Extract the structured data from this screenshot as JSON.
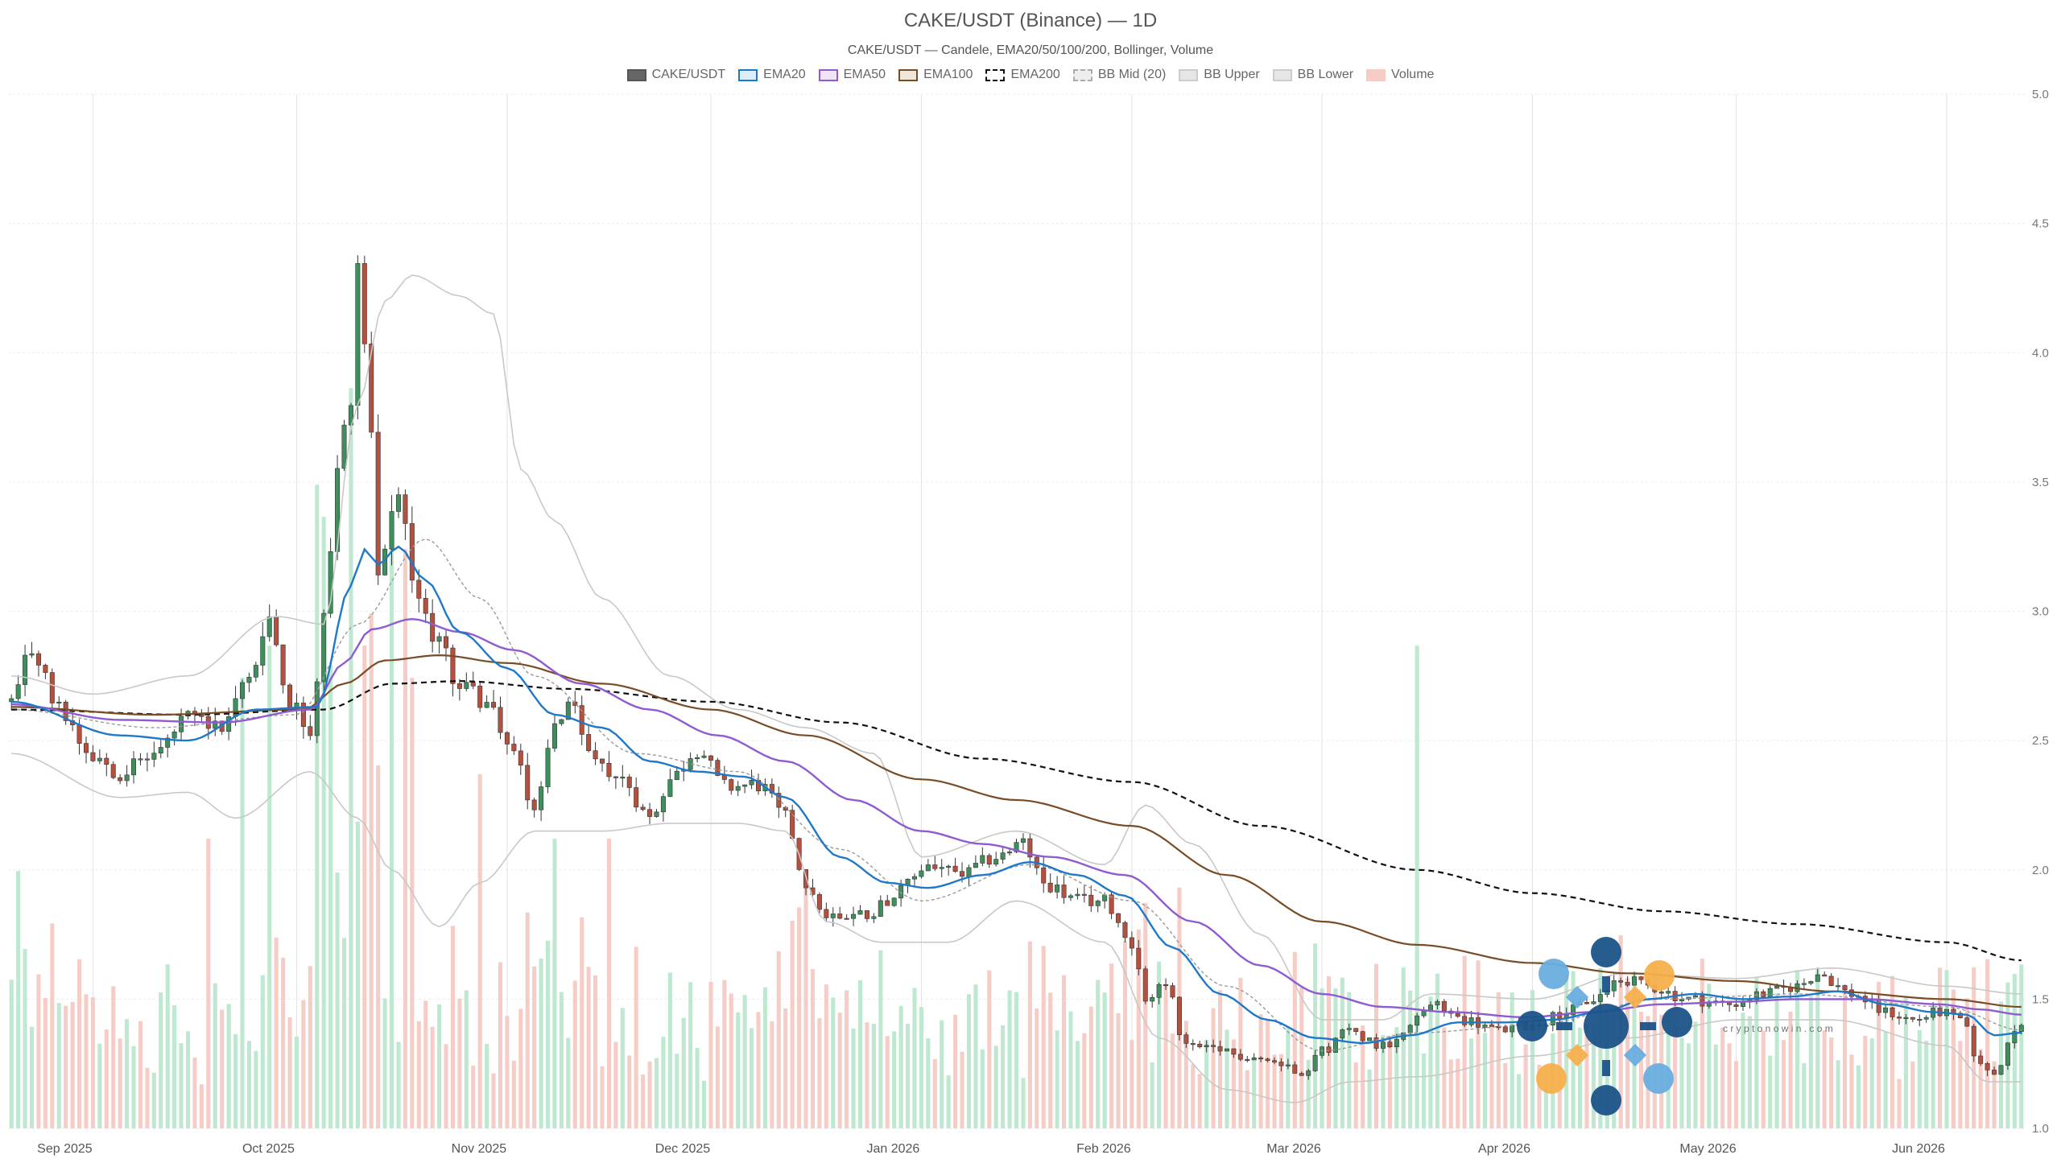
{
  "chart_data": {
    "type": "candlestick",
    "title": "CAKE/USDT (Binance) — 1D",
    "subtitle": "CAKE/USDT — Candele, EMA20/50/100/200, Bollinger, Volume",
    "legend": [
      {
        "label": "CAKE/USDT",
        "fill": "#666666",
        "stroke": "#555555",
        "dash": false
      },
      {
        "label": "EMA20",
        "fill": "#dbeefb",
        "stroke": "#1f78c8",
        "dash": false
      },
      {
        "label": "EMA50",
        "fill": "#eee5f7",
        "stroke": "#8e5bd1",
        "dash": false
      },
      {
        "label": "EMA100",
        "fill": "#efe6dc",
        "stroke": "#7a4c26",
        "dash": false
      },
      {
        "label": "EMA200",
        "fill": "#ffffff",
        "stroke": "#111111",
        "dash": true
      },
      {
        "label": "BB Mid (20)",
        "fill": "#eeeeee",
        "stroke": "#aaaaaa",
        "dash": true
      },
      {
        "label": "BB Upper",
        "fill": "#e6e6e6",
        "stroke": "#cccccc",
        "dash": false
      },
      {
        "label": "BB Lower",
        "fill": "#e6e6e6",
        "stroke": "#cccccc",
        "dash": false
      },
      {
        "label": "Volume",
        "fill": "#f5cdc6",
        "stroke": "#f5cdc6",
        "dash": false
      }
    ],
    "x_axis": {
      "start": "2025-08-20",
      "end": "2026-06-12",
      "ticks": [
        {
          "date": "2025-09-01",
          "label": "Sep 2025"
        },
        {
          "date": "2025-10-01",
          "label": "Oct 2025"
        },
        {
          "date": "2025-11-01",
          "label": "Nov 2025"
        },
        {
          "date": "2025-12-01",
          "label": "Dec 2025"
        },
        {
          "date": "2026-01-01",
          "label": "Jan 2026"
        },
        {
          "date": "2026-02-01",
          "label": "Feb 2026"
        },
        {
          "date": "2026-03-01",
          "label": "Mar 2026"
        },
        {
          "date": "2026-04-01",
          "label": "Apr 2026"
        },
        {
          "date": "2026-05-01",
          "label": "May 2026"
        },
        {
          "date": "2026-06-01",
          "label": "Jun 2026"
        }
      ]
    },
    "y_axis": {
      "min": 1.0,
      "max": 5.0,
      "ticks": [
        "1.0",
        "1.5",
        "2.0",
        "2.5",
        "3.0",
        "3.5",
        "4.0",
        "4.5",
        "5.0"
      ],
      "side": "right",
      "grid": true
    },
    "colors": {
      "up": "#3e8f5c",
      "down": "#b5503f",
      "volume_up": "#bfe8d0",
      "volume_down": "#f5cdc6"
    },
    "price_anchors": [
      [
        "2025-08-20",
        2.65
      ],
      [
        "2025-08-23",
        2.85
      ],
      [
        "2025-08-27",
        2.62
      ],
      [
        "2025-09-01",
        2.45
      ],
      [
        "2025-09-05",
        2.38
      ],
      [
        "2025-09-10",
        2.45
      ],
      [
        "2025-09-15",
        2.58
      ],
      [
        "2025-09-20",
        2.55
      ],
      [
        "2025-09-24",
        2.75
      ],
      [
        "2025-09-27",
        2.95
      ],
      [
        "2025-09-30",
        2.65
      ],
      [
        "2025-10-03",
        2.55
      ],
      [
        "2025-10-05",
        2.95
      ],
      [
        "2025-10-07",
        3.55
      ],
      [
        "2025-10-09",
        3.85
      ],
      [
        "2025-10-10",
        4.35
      ],
      [
        "2025-10-12",
        3.7
      ],
      [
        "2025-10-13",
        3.1
      ],
      [
        "2025-10-16",
        3.5
      ],
      [
        "2025-10-18",
        3.1
      ],
      [
        "2025-10-21",
        2.92
      ],
      [
        "2025-10-25",
        2.72
      ],
      [
        "2025-10-29",
        2.65
      ],
      [
        "2025-11-02",
        2.45
      ],
      [
        "2025-11-05",
        2.25
      ],
      [
        "2025-11-08",
        2.55
      ],
      [
        "2025-11-10",
        2.65
      ],
      [
        "2025-11-13",
        2.45
      ],
      [
        "2025-11-18",
        2.35
      ],
      [
        "2025-11-22",
        2.2
      ],
      [
        "2025-11-25",
        2.35
      ],
      [
        "2025-11-29",
        2.47
      ],
      [
        "2025-12-03",
        2.32
      ],
      [
        "2025-12-08",
        2.33
      ],
      [
        "2025-12-12",
        2.2
      ],
      [
        "2025-12-15",
        1.95
      ],
      [
        "2025-12-18",
        1.82
      ],
      [
        "2025-12-24",
        1.83
      ],
      [
        "2025-12-28",
        1.9
      ],
      [
        "2026-01-02",
        2.02
      ],
      [
        "2026-01-07",
        1.98
      ],
      [
        "2026-01-12",
        2.05
      ],
      [
        "2026-01-16",
        2.1
      ],
      [
        "2026-01-19",
        1.95
      ],
      [
        "2026-01-24",
        1.88
      ],
      [
        "2026-01-28",
        1.88
      ],
      [
        "2026-02-01",
        1.72
      ],
      [
        "2026-02-03",
        1.5
      ],
      [
        "2026-02-06",
        1.55
      ],
      [
        "2026-02-09",
        1.32
      ],
      [
        "2026-02-13",
        1.3
      ],
      [
        "2026-02-18",
        1.28
      ],
      [
        "2026-02-23",
        1.25
      ],
      [
        "2026-02-26",
        1.22
      ],
      [
        "2026-03-01",
        1.3
      ],
      [
        "2026-03-05",
        1.38
      ],
      [
        "2026-03-10",
        1.32
      ],
      [
        "2026-03-14",
        1.4
      ],
      [
        "2026-03-17",
        1.48
      ],
      [
        "2026-03-22",
        1.42
      ],
      [
        "2026-03-27",
        1.38
      ],
      [
        "2026-04-01",
        1.4
      ],
      [
        "2026-04-06",
        1.45
      ],
      [
        "2026-04-10",
        1.5
      ],
      [
        "2026-04-14",
        1.58
      ],
      [
        "2026-04-18",
        1.55
      ],
      [
        "2026-04-24",
        1.5
      ],
      [
        "2026-04-30",
        1.48
      ],
      [
        "2026-05-05",
        1.52
      ],
      [
        "2026-05-10",
        1.55
      ],
      [
        "2026-05-13",
        1.6
      ],
      [
        "2026-05-18",
        1.52
      ],
      [
        "2026-05-23",
        1.45
      ],
      [
        "2026-05-27",
        1.42
      ],
      [
        "2026-05-31",
        1.45
      ],
      [
        "2026-06-03",
        1.42
      ],
      [
        "2026-06-06",
        1.25
      ],
      [
        "2026-06-08",
        1.2
      ],
      [
        "2026-06-10",
        1.32
      ],
      [
        "2026-06-12",
        1.42
      ]
    ],
    "ema20": [
      [
        "2025-08-20",
        2.65
      ],
      [
        "2025-09-05",
        2.52
      ],
      [
        "2025-09-15",
        2.5
      ],
      [
        "2025-09-25",
        2.62
      ],
      [
        "2025-10-04",
        2.63
      ],
      [
        "2025-10-09",
        3.1
      ],
      [
        "2025-10-11",
        3.24
      ],
      [
        "2025-10-13",
        3.18
      ],
      [
        "2025-10-16",
        3.25
      ],
      [
        "2025-10-20",
        3.12
      ],
      [
        "2025-10-25",
        2.92
      ],
      [
        "2025-11-01",
        2.78
      ],
      [
        "2025-11-08",
        2.6
      ],
      [
        "2025-11-15",
        2.55
      ],
      [
        "2025-11-22",
        2.42
      ],
      [
        "2025-11-29",
        2.38
      ],
      [
        "2025-12-06",
        2.36
      ],
      [
        "2025-12-12",
        2.28
      ],
      [
        "2025-12-20",
        2.05
      ],
      [
        "2025-12-27",
        1.95
      ],
      [
        "2026-01-02",
        1.93
      ],
      [
        "2026-01-10",
        1.98
      ],
      [
        "2026-01-17",
        2.03
      ],
      [
        "2026-01-24",
        1.98
      ],
      [
        "2026-01-31",
        1.9
      ],
      [
        "2026-02-07",
        1.7
      ],
      [
        "2026-02-14",
        1.52
      ],
      [
        "2026-02-21",
        1.42
      ],
      [
        "2026-02-28",
        1.35
      ],
      [
        "2026-03-07",
        1.33
      ],
      [
        "2026-03-14",
        1.36
      ],
      [
        "2026-03-21",
        1.41
      ],
      [
        "2026-03-28",
        1.41
      ],
      [
        "2026-04-04",
        1.42
      ],
      [
        "2026-04-11",
        1.45
      ],
      [
        "2026-04-18",
        1.5
      ],
      [
        "2026-04-25",
        1.52
      ],
      [
        "2026-05-02",
        1.5
      ],
      [
        "2026-05-09",
        1.51
      ],
      [
        "2026-05-16",
        1.53
      ],
      [
        "2026-05-23",
        1.48
      ],
      [
        "2026-05-30",
        1.45
      ],
      [
        "2026-06-04",
        1.44
      ],
      [
        "2026-06-08",
        1.36
      ],
      [
        "2026-06-12",
        1.37
      ]
    ],
    "ema50": [
      [
        "2025-08-20",
        2.64
      ],
      [
        "2025-09-05",
        2.58
      ],
      [
        "2025-09-20",
        2.57
      ],
      [
        "2025-10-03",
        2.62
      ],
      [
        "2025-10-08",
        2.8
      ],
      [
        "2025-10-12",
        2.93
      ],
      [
        "2025-10-18",
        2.97
      ],
      [
        "2025-10-25",
        2.92
      ],
      [
        "2025-11-02",
        2.85
      ],
      [
        "2025-11-12",
        2.72
      ],
      [
        "2025-11-22",
        2.62
      ],
      [
        "2025-12-02",
        2.52
      ],
      [
        "2025-12-12",
        2.42
      ],
      [
        "2025-12-22",
        2.27
      ],
      [
        "2026-01-01",
        2.15
      ],
      [
        "2026-01-10",
        2.1
      ],
      [
        "2026-01-20",
        2.05
      ],
      [
        "2026-01-31",
        1.98
      ],
      [
        "2026-02-10",
        1.8
      ],
      [
        "2026-02-20",
        1.63
      ],
      [
        "2026-03-01",
        1.52
      ],
      [
        "2026-03-10",
        1.47
      ],
      [
        "2026-03-20",
        1.45
      ],
      [
        "2026-03-31",
        1.43
      ],
      [
        "2026-04-10",
        1.45
      ],
      [
        "2026-04-20",
        1.48
      ],
      [
        "2026-05-01",
        1.49
      ],
      [
        "2026-05-10",
        1.5
      ],
      [
        "2026-05-20",
        1.5
      ],
      [
        "2026-05-31",
        1.48
      ],
      [
        "2026-06-06",
        1.46
      ],
      [
        "2026-06-12",
        1.44
      ]
    ],
    "ema100": [
      [
        "2025-08-20",
        2.63
      ],
      [
        "2025-09-10",
        2.6
      ],
      [
        "2025-10-02",
        2.62
      ],
      [
        "2025-10-08",
        2.72
      ],
      [
        "2025-10-14",
        2.81
      ],
      [
        "2025-10-22",
        2.83
      ],
      [
        "2025-11-01",
        2.8
      ],
      [
        "2025-11-15",
        2.72
      ],
      [
        "2025-12-01",
        2.62
      ],
      [
        "2025-12-15",
        2.52
      ],
      [
        "2026-01-01",
        2.35
      ],
      [
        "2026-01-15",
        2.27
      ],
      [
        "2026-02-01",
        2.17
      ],
      [
        "2026-02-15",
        1.98
      ],
      [
        "2026-03-01",
        1.8
      ],
      [
        "2026-03-15",
        1.71
      ],
      [
        "2026-04-01",
        1.64
      ],
      [
        "2026-04-15",
        1.6
      ],
      [
        "2026-05-01",
        1.57
      ],
      [
        "2026-05-15",
        1.53
      ],
      [
        "2026-06-01",
        1.5
      ],
      [
        "2026-06-12",
        1.47
      ]
    ],
    "ema200": [
      [
        "2025-08-20",
        2.62
      ],
      [
        "2025-09-15",
        2.6
      ],
      [
        "2025-10-05",
        2.62
      ],
      [
        "2025-10-15",
        2.72
      ],
      [
        "2025-10-25",
        2.73
      ],
      [
        "2025-11-10",
        2.7
      ],
      [
        "2025-12-01",
        2.65
      ],
      [
        "2025-12-20",
        2.57
      ],
      [
        "2026-01-10",
        2.43
      ],
      [
        "2026-02-01",
        2.34
      ],
      [
        "2026-02-20",
        2.17
      ],
      [
        "2026-03-15",
        2.0
      ],
      [
        "2026-04-01",
        1.91
      ],
      [
        "2026-04-20",
        1.84
      ],
      [
        "2026-05-10",
        1.79
      ],
      [
        "2026-06-01",
        1.72
      ],
      [
        "2026-06-12",
        1.65
      ]
    ],
    "bb_upper": [
      [
        "2025-08-20",
        2.75
      ],
      [
        "2025-09-01",
        2.68
      ],
      [
        "2025-09-15",
        2.75
      ],
      [
        "2025-09-28",
        2.98
      ],
      [
        "2025-10-05",
        2.95
      ],
      [
        "2025-10-10",
        3.8
      ],
      [
        "2025-10-14",
        4.2
      ],
      [
        "2025-10-18",
        4.3
      ],
      [
        "2025-10-25",
        4.22
      ],
      [
        "2025-10-30",
        4.15
      ],
      [
        "2025-11-03",
        3.55
      ],
      [
        "2025-11-08",
        3.35
      ],
      [
        "2025-11-15",
        3.05
      ],
      [
        "2025-11-25",
        2.75
      ],
      [
        "2025-12-05",
        2.62
      ],
      [
        "2025-12-15",
        2.55
      ],
      [
        "2025-12-25",
        2.45
      ],
      [
        "2026-01-01",
        2.05
      ],
      [
        "2026-01-15",
        2.15
      ],
      [
        "2026-01-28",
        2.02
      ],
      [
        "2026-02-03",
        2.25
      ],
      [
        "2026-02-10",
        2.1
      ],
      [
        "2026-02-20",
        1.75
      ],
      [
        "2026-03-01",
        1.42
      ],
      [
        "2026-03-10",
        1.42
      ],
      [
        "2026-03-17",
        1.52
      ],
      [
        "2026-04-01",
        1.5
      ],
      [
        "2026-04-15",
        1.6
      ],
      [
        "2026-05-01",
        1.58
      ],
      [
        "2026-05-15",
        1.62
      ],
      [
        "2026-06-01",
        1.55
      ],
      [
        "2026-06-12",
        1.52
      ]
    ],
    "bb_mid": [
      [
        "2025-08-20",
        2.62
      ],
      [
        "2025-09-10",
        2.55
      ],
      [
        "2025-10-01",
        2.6
      ],
      [
        "2025-10-10",
        2.95
      ],
      [
        "2025-10-20",
        3.28
      ],
      [
        "2025-10-28",
        3.05
      ],
      [
        "2025-11-05",
        2.75
      ],
      [
        "2025-11-20",
        2.45
      ],
      [
        "2025-12-05",
        2.38
      ],
      [
        "2025-12-20",
        2.08
      ],
      [
        "2026-01-01",
        1.88
      ],
      [
        "2026-01-17",
        2.02
      ],
      [
        "2026-02-01",
        1.88
      ],
      [
        "2026-02-15",
        1.55
      ],
      [
        "2026-03-01",
        1.3
      ],
      [
        "2026-03-15",
        1.37
      ],
      [
        "2026-04-01",
        1.4
      ],
      [
        "2026-04-20",
        1.5
      ],
      [
        "2026-05-10",
        1.52
      ],
      [
        "2026-06-01",
        1.47
      ],
      [
        "2026-06-12",
        1.38
      ]
    ],
    "bb_lower": [
      [
        "2025-08-20",
        2.45
      ],
      [
        "2025-09-05",
        2.28
      ],
      [
        "2025-09-15",
        2.3
      ],
      [
        "2025-09-22",
        2.2
      ],
      [
        "2025-10-03",
        2.38
      ],
      [
        "2025-10-10",
        2.2
      ],
      [
        "2025-10-15",
        2.0
      ],
      [
        "2025-10-22",
        1.78
      ],
      [
        "2025-10-28",
        1.95
      ],
      [
        "2025-11-05",
        2.15
      ],
      [
        "2025-11-15",
        2.15
      ],
      [
        "2025-11-25",
        2.18
      ],
      [
        "2025-12-05",
        2.18
      ],
      [
        "2025-12-12",
        2.15
      ],
      [
        "2025-12-18",
        1.8
      ],
      [
        "2025-12-26",
        1.72
      ],
      [
        "2026-01-05",
        1.72
      ],
      [
        "2026-01-15",
        1.88
      ],
      [
        "2026-01-28",
        1.72
      ],
      [
        "2026-02-05",
        1.35
      ],
      [
        "2026-02-15",
        1.15
      ],
      [
        "2026-02-25",
        1.1
      ],
      [
        "2026-03-05",
        1.18
      ],
      [
        "2026-03-15",
        1.2
      ],
      [
        "2026-04-01",
        1.28
      ],
      [
        "2026-04-15",
        1.35
      ],
      [
        "2026-05-01",
        1.42
      ],
      [
        "2026-05-15",
        1.42
      ],
      [
        "2026-06-01",
        1.32
      ],
      [
        "2026-06-07",
        1.18
      ],
      [
        "2026-06-12",
        1.18
      ]
    ],
    "volume_spikes": [
      [
        "2025-08-21",
        0.4
      ],
      [
        "2025-09-18",
        0.45
      ],
      [
        "2025-09-23",
        0.7
      ],
      [
        "2025-09-27",
        0.75
      ],
      [
        "2025-10-04",
        1.0
      ],
      [
        "2025-10-05",
        0.95
      ],
      [
        "2025-10-06",
        0.72
      ],
      [
        "2025-10-09",
        1.15
      ],
      [
        "2025-10-11",
        0.75
      ],
      [
        "2025-10-12",
        0.8
      ],
      [
        "2025-10-15",
        0.95
      ],
      [
        "2025-10-17",
        0.9
      ],
      [
        "2025-10-18",
        0.7
      ],
      [
        "2025-10-28",
        0.55
      ],
      [
        "2025-11-08",
        0.45
      ],
      [
        "2025-11-16",
        0.45
      ],
      [
        "2025-12-15",
        0.4
      ],
      [
        "2026-02-03",
        0.35
      ],
      [
        "2026-03-15",
        0.75
      ],
      [
        "2026-04-14",
        0.3
      ],
      [
        "2026-06-05",
        0.25
      ]
    ],
    "watermark": {
      "text": "c r y p t o n o w i n . c o m"
    }
  }
}
